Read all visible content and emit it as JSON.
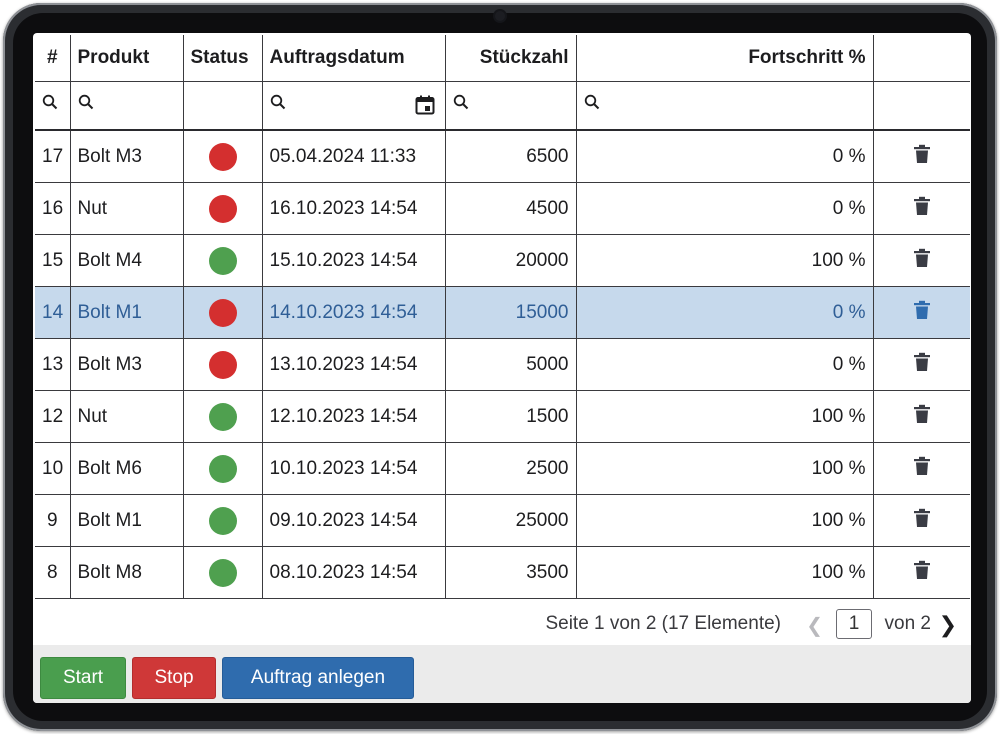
{
  "table": {
    "columns": [
      "#",
      "Produkt",
      "Status",
      "Auftragsdatum",
      "Stückzahl",
      "Fortschritt %",
      ""
    ],
    "rows": [
      {
        "id": "17",
        "product": "Bolt M3",
        "status": "red",
        "date": "05.04.2024 11:33",
        "qty": "6500",
        "progress": "0 %"
      },
      {
        "id": "16",
        "product": "Nut",
        "status": "red",
        "date": "16.10.2023 14:54",
        "qty": "4500",
        "progress": "0 %"
      },
      {
        "id": "15",
        "product": "Bolt M4",
        "status": "green",
        "date": "15.10.2023 14:54",
        "qty": "20000",
        "progress": "100 %"
      },
      {
        "id": "14",
        "product": "Bolt M1",
        "status": "red",
        "date": "14.10.2023 14:54",
        "qty": "15000",
        "progress": "0 %",
        "selected": true
      },
      {
        "id": "13",
        "product": "Bolt M3",
        "status": "red",
        "date": "13.10.2023 14:54",
        "qty": "5000",
        "progress": "0 %"
      },
      {
        "id": "12",
        "product": "Nut",
        "status": "green",
        "date": "12.10.2023 14:54",
        "qty": "1500",
        "progress": "100 %"
      },
      {
        "id": "10",
        "product": "Bolt M6",
        "status": "green",
        "date": "10.10.2023 14:54",
        "qty": "2500",
        "progress": "100 %"
      },
      {
        "id": "9",
        "product": "Bolt M1",
        "status": "green",
        "date": "09.10.2023 14:54",
        "qty": "25000",
        "progress": "100 %"
      },
      {
        "id": "8",
        "product": "Bolt M8",
        "status": "green",
        "date": "08.10.2023 14:54",
        "qty": "3500",
        "progress": "100 %"
      }
    ]
  },
  "icons": {
    "filter": "search-icon",
    "date_filter": "calendar-icon",
    "delete": "trash-icon",
    "prev": "chevron-left-icon",
    "next": "chevron-right-icon"
  },
  "pager": {
    "info": "Seite 1 von 2 (17 Elemente)",
    "page": "1",
    "of": "von 2",
    "prev": "<",
    "next": ">"
  },
  "buttons": {
    "start": "Start",
    "stop": "Stop",
    "create": "Auftrag anlegen"
  },
  "colors": {
    "status_red": "#d42f2f",
    "status_green": "#4fa04f",
    "selected_row": "#c6d9ec",
    "selected_text": "#2f5e96",
    "btn_start": "#4a9e4e",
    "btn_stop": "#cf3838",
    "btn_create": "#2f6cae"
  }
}
